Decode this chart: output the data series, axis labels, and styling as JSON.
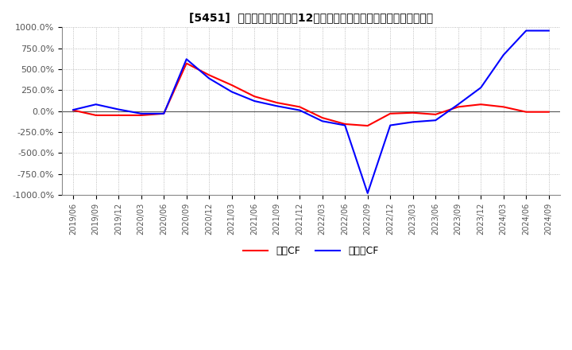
{
  "title": "[5451]  キャッシュフローの12か月移動合計の対前年同期増減率の推移",
  "ylim": [
    -1000,
    1000
  ],
  "yticks": [
    -1000,
    -750,
    -500,
    -250,
    0,
    250,
    500,
    750,
    1000
  ],
  "ytick_labels": [
    "-1000.0%",
    "-750.0%",
    "-500.0%",
    "-250.0%",
    "0.0%",
    "250.0%",
    "500.0%",
    "750.0%",
    "1000.0%"
  ],
  "legend": [
    "営業CF",
    "フリーCF"
  ],
  "legend_colors": [
    "#ff0000",
    "#0000ff"
  ],
  "bg_color": "#ffffff",
  "grid_color": "#aaaaaa",
  "dates": [
    "2019/06",
    "2019/09",
    "2019/12",
    "2020/03",
    "2020/06",
    "2020/09",
    "2020/12",
    "2021/03",
    "2021/06",
    "2021/09",
    "2021/12",
    "2022/03",
    "2022/06",
    "2022/09",
    "2022/12",
    "2023/03",
    "2023/06",
    "2023/09",
    "2023/12",
    "2024/03",
    "2024/06",
    "2024/09"
  ],
  "operating_cf": [
    10,
    -50,
    -50,
    -50,
    -30,
    570,
    430,
    310,
    175,
    100,
    50,
    -80,
    -155,
    -175,
    -30,
    -20,
    -40,
    50,
    80,
    50,
    -10,
    -10
  ],
  "free_cf": [
    15,
    80,
    20,
    -30,
    -30,
    620,
    390,
    230,
    120,
    60,
    10,
    -120,
    -170,
    -980,
    -170,
    -130,
    -110,
    80,
    280,
    670,
    960,
    960
  ]
}
